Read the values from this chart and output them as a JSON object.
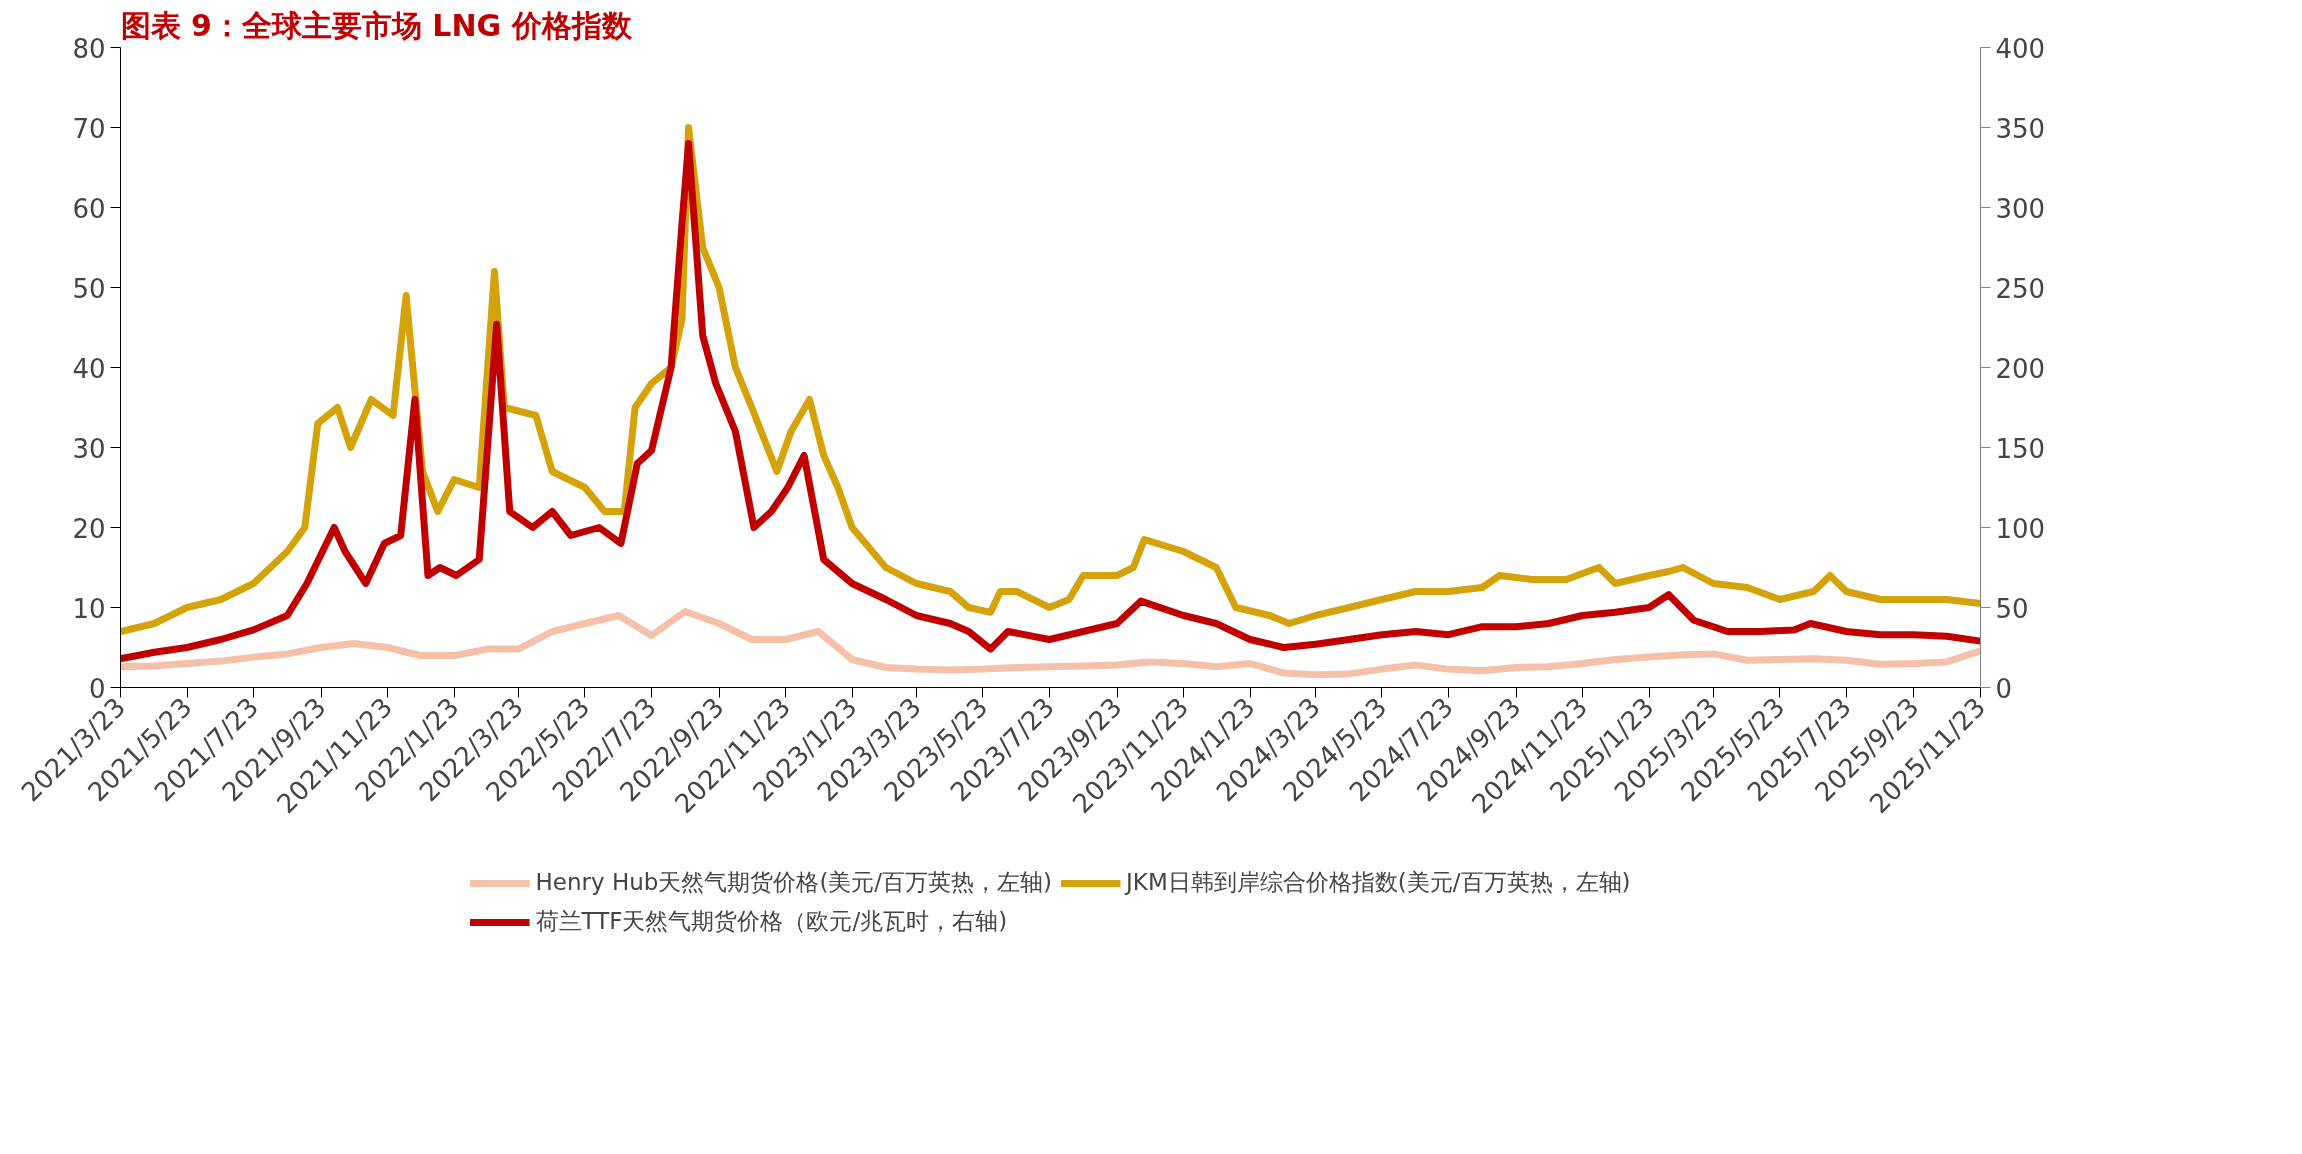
{
  "chart_data": {
    "type": "line",
    "title": "图表 9：全球主要市场 LNG 价格指数",
    "xlim": [
      "2021-03-23",
      "2025-11-23"
    ],
    "xticks": [
      {
        "value": "2021-03-23",
        "label": "2021/3/23"
      },
      {
        "value": "2021-05-23",
        "label": "2021/5/23"
      },
      {
        "value": "2021-07-23",
        "label": "2021/7/23"
      },
      {
        "value": "2021-09-23",
        "label": "2021/9/23"
      },
      {
        "value": "2021-11-23",
        "label": "2021/11/23"
      },
      {
        "value": "2022-01-23",
        "label": "2022/1/23"
      },
      {
        "value": "2022-03-23",
        "label": "2022/3/23"
      },
      {
        "value": "2022-05-23",
        "label": "2022/5/23"
      },
      {
        "value": "2022-07-23",
        "label": "2022/7/23"
      },
      {
        "value": "2022-09-23",
        "label": "2022/9/23"
      },
      {
        "value": "2022-11-23",
        "label": "2022/11/23"
      },
      {
        "value": "2023-01-23",
        "label": "2023/1/23"
      },
      {
        "value": "2023-03-23",
        "label": "2023/3/23"
      },
      {
        "value": "2023-05-23",
        "label": "2023/5/23"
      },
      {
        "value": "2023-07-23",
        "label": "2023/7/23"
      },
      {
        "value": "2023-09-23",
        "label": "2023/9/23"
      },
      {
        "value": "2023-11-23",
        "label": "2023/11/23"
      },
      {
        "value": "2024-01-23",
        "label": "2024/1/23"
      },
      {
        "value": "2024-03-23",
        "label": "2024/3/23"
      },
      {
        "value": "2024-05-23",
        "label": "2024/5/23"
      },
      {
        "value": "2024-07-23",
        "label": "2024/7/23"
      },
      {
        "value": "2024-09-23",
        "label": "2024/9/23"
      },
      {
        "value": "2024-11-23",
        "label": "2024/11/23"
      },
      {
        "value": "2025-01-23",
        "label": "2025/1/23"
      },
      {
        "value": "2025-03-23",
        "label": "2025/3/23"
      },
      {
        "value": "2025-05-23",
        "label": "2025/5/23"
      },
      {
        "value": "2025-07-23",
        "label": "2025/7/23"
      },
      {
        "value": "2025-09-23",
        "label": "2025/9/23"
      },
      {
        "value": "2025-11-23",
        "label": "2025/11/23"
      }
    ],
    "ylim": [
      0,
      80
    ],
    "yticks": [
      0,
      10,
      20,
      30,
      40,
      50,
      60,
      70,
      80
    ],
    "y2lim": [
      0,
      400
    ],
    "y2ticks": [
      0,
      50,
      100,
      150,
      200,
      250,
      300,
      350,
      400
    ],
    "grid": false,
    "legend": "bottom",
    "series": [
      {
        "name": "Henry Hub天然气期货价格(美元/百万英热，左轴)",
        "color": "#f4c0a8",
        "x": [
          "2021-03-23",
          "2021-04-23",
          "2021-05-23",
          "2021-06-23",
          "2021-07-23",
          "2021-08-23",
          "2021-09-23",
          "2021-10-23",
          "2021-11-23",
          "2021-12-23",
          "2022-01-23",
          "2022-02-23",
          "2022-03-23",
          "2022-04-23",
          "2022-05-23",
          "2022-06-23",
          "2022-07-23",
          "2022-08-23",
          "2022-09-23",
          "2022-10-23",
          "2022-11-23",
          "2022-12-23",
          "2023-01-23",
          "2023-02-23",
          "2023-03-23",
          "2023-04-23",
          "2023-05-23",
          "2023-06-23",
          "2023-07-23",
          "2023-08-23",
          "2023-09-23",
          "2023-10-23",
          "2023-11-23",
          "2023-12-23",
          "2024-01-23",
          "2024-02-23",
          "2024-03-23",
          "2024-04-23",
          "2024-05-23",
          "2024-06-23",
          "2024-07-23",
          "2024-08-23",
          "2024-09-23",
          "2024-10-23",
          "2024-11-23",
          "2024-12-23",
          "2025-01-23",
          "2025-02-23",
          "2025-03-23",
          "2025-04-23",
          "2025-05-23",
          "2025-06-23",
          "2025-07-23",
          "2025-08-23",
          "2025-09-23",
          "2025-10-23",
          "2025-11-23"
        ],
        "values": [
          2.6,
          2.7,
          3,
          3.3,
          3.8,
          4.2,
          5,
          5.5,
          5,
          4,
          4,
          4.8,
          4.8,
          7,
          8,
          9,
          6.5,
          9.5,
          8,
          6,
          6,
          7,
          3.5,
          2.5,
          2.3,
          2.2,
          2.3,
          2.5,
          2.6,
          2.7,
          2.8,
          3.2,
          3,
          2.6,
          3,
          1.8,
          1.6,
          1.7,
          2.3,
          2.8,
          2.3,
          2.1,
          2.5,
          2.6,
          3,
          3.5,
          3.8,
          4.1,
          4.2,
          3.4,
          3.5,
          3.6,
          3.4,
          2.9,
          3,
          3.2,
          4.6
        ]
      },
      {
        "name": "JKM日韩到岸综合价格指数(美元/百万英热，左轴)",
        "color": "#d4a20a",
        "x": [
          "2021-03-23",
          "2021-04-23",
          "2021-05-23",
          "2021-06-23",
          "2021-07-23",
          "2021-08-23",
          "2021-09-08",
          "2021-09-20",
          "2021-10-08",
          "2021-10-20",
          "2021-11-08",
          "2021-11-28",
          "2021-12-10",
          "2021-12-25",
          "2022-01-08",
          "2022-01-23",
          "2022-02-15",
          "2022-03-01",
          "2022-03-10",
          "2022-04-08",
          "2022-04-23",
          "2022-05-23",
          "2022-06-10",
          "2022-06-28",
          "2022-07-08",
          "2022-07-23",
          "2022-08-10",
          "2022-08-20",
          "2022-08-26",
          "2022-09-08",
          "2022-09-23",
          "2022-10-08",
          "2022-10-23",
          "2022-11-15",
          "2022-11-28",
          "2022-12-15",
          "2022-12-28",
          "2023-01-10",
          "2023-01-23",
          "2023-02-23",
          "2023-03-23",
          "2023-04-23",
          "2023-05-10",
          "2023-05-30",
          "2023-06-08",
          "2023-06-23",
          "2023-07-23",
          "2023-08-10",
          "2023-08-23",
          "2023-09-23",
          "2023-10-08",
          "2023-10-18",
          "2023-11-23",
          "2023-12-23",
          "2024-01-10",
          "2024-02-10",
          "2024-02-28",
          "2024-03-23",
          "2024-04-23",
          "2024-05-23",
          "2024-06-23",
          "2024-07-23",
          "2024-08-23",
          "2024-09-08",
          "2024-10-08",
          "2024-11-08",
          "2024-12-08",
          "2024-12-23",
          "2025-01-23",
          "2025-02-10",
          "2025-02-23",
          "2025-03-23",
          "2025-04-23",
          "2025-05-23",
          "2025-06-23",
          "2025-07-08",
          "2025-07-23",
          "2025-08-23",
          "2025-09-23",
          "2025-10-23",
          "2025-11-23"
        ],
        "values": [
          7,
          8,
          10,
          11,
          13,
          17,
          20,
          33,
          35,
          30,
          36,
          34,
          49,
          27,
          22,
          26,
          25,
          52,
          35,
          34,
          27,
          25,
          22,
          22,
          35,
          38,
          40,
          46,
          70,
          55,
          50,
          40,
          35,
          27,
          32,
          36,
          29,
          25,
          20,
          15,
          13,
          12,
          10,
          9.4,
          12,
          12,
          10,
          11,
          14,
          14,
          15,
          18.5,
          17,
          15,
          10,
          9,
          8,
          9,
          10,
          11,
          12,
          12,
          12.5,
          14,
          13.5,
          13.5,
          15,
          13,
          14,
          14.5,
          15,
          13,
          12.5,
          11,
          12,
          14,
          12,
          11,
          11,
          11,
          10.5
        ]
      },
      {
        "name": "荷兰TTF天然气期货价格（欧元/兆瓦时，右轴)",
        "color": "#c00000",
        "axis": "y2",
        "x": [
          "2021-03-23",
          "2021-04-23",
          "2021-05-23",
          "2021-06-23",
          "2021-07-23",
          "2021-08-23",
          "2021-09-10",
          "2021-10-05",
          "2021-10-15",
          "2021-11-03",
          "2021-11-20",
          "2021-12-05",
          "2021-12-18",
          "2021-12-30",
          "2022-01-10",
          "2022-01-25",
          "2022-02-15",
          "2022-03-03",
          "2022-03-15",
          "2022-04-05",
          "2022-04-23",
          "2022-05-10",
          "2022-06-05",
          "2022-06-25",
          "2022-07-10",
          "2022-07-23",
          "2022-08-10",
          "2022-08-20",
          "2022-08-26",
          "2022-09-08",
          "2022-09-20",
          "2022-10-08",
          "2022-10-25",
          "2022-11-10",
          "2022-11-25",
          "2022-12-10",
          "2022-12-28",
          "2023-01-23",
          "2023-02-23",
          "2023-03-23",
          "2023-04-23",
          "2023-05-10",
          "2023-05-30",
          "2023-06-15",
          "2023-07-23",
          "2023-08-23",
          "2023-09-23",
          "2023-10-15",
          "2023-11-23",
          "2023-12-23",
          "2024-01-23",
          "2024-02-23",
          "2024-03-23",
          "2024-04-23",
          "2024-05-23",
          "2024-06-23",
          "2024-07-23",
          "2024-08-23",
          "2024-09-23",
          "2024-10-23",
          "2024-11-23",
          "2024-12-23",
          "2025-01-23",
          "2025-02-10",
          "2025-03-05",
          "2025-04-05",
          "2025-05-05",
          "2025-06-05",
          "2025-06-20",
          "2025-07-23",
          "2025-08-23",
          "2025-09-23",
          "2025-10-23",
          "2025-11-23"
        ],
        "values": [
          18,
          22,
          25,
          30,
          36,
          45,
          65,
          100,
          85,
          65,
          90,
          95,
          180,
          70,
          75,
          70,
          80,
          227,
          110,
          100,
          110,
          95,
          100,
          90,
          140,
          148,
          200,
          290,
          340,
          220,
          190,
          160,
          100,
          110,
          125,
          145,
          80,
          65,
          55,
          45,
          40,
          35,
          24,
          35,
          30,
          35,
          40,
          54,
          45,
          40,
          30,
          25,
          27,
          30,
          33,
          35,
          33,
          38,
          38,
          40,
          45,
          47,
          50,
          58,
          42,
          35,
          35,
          36,
          40,
          35,
          33,
          33,
          32,
          29
        ]
      }
    ]
  }
}
